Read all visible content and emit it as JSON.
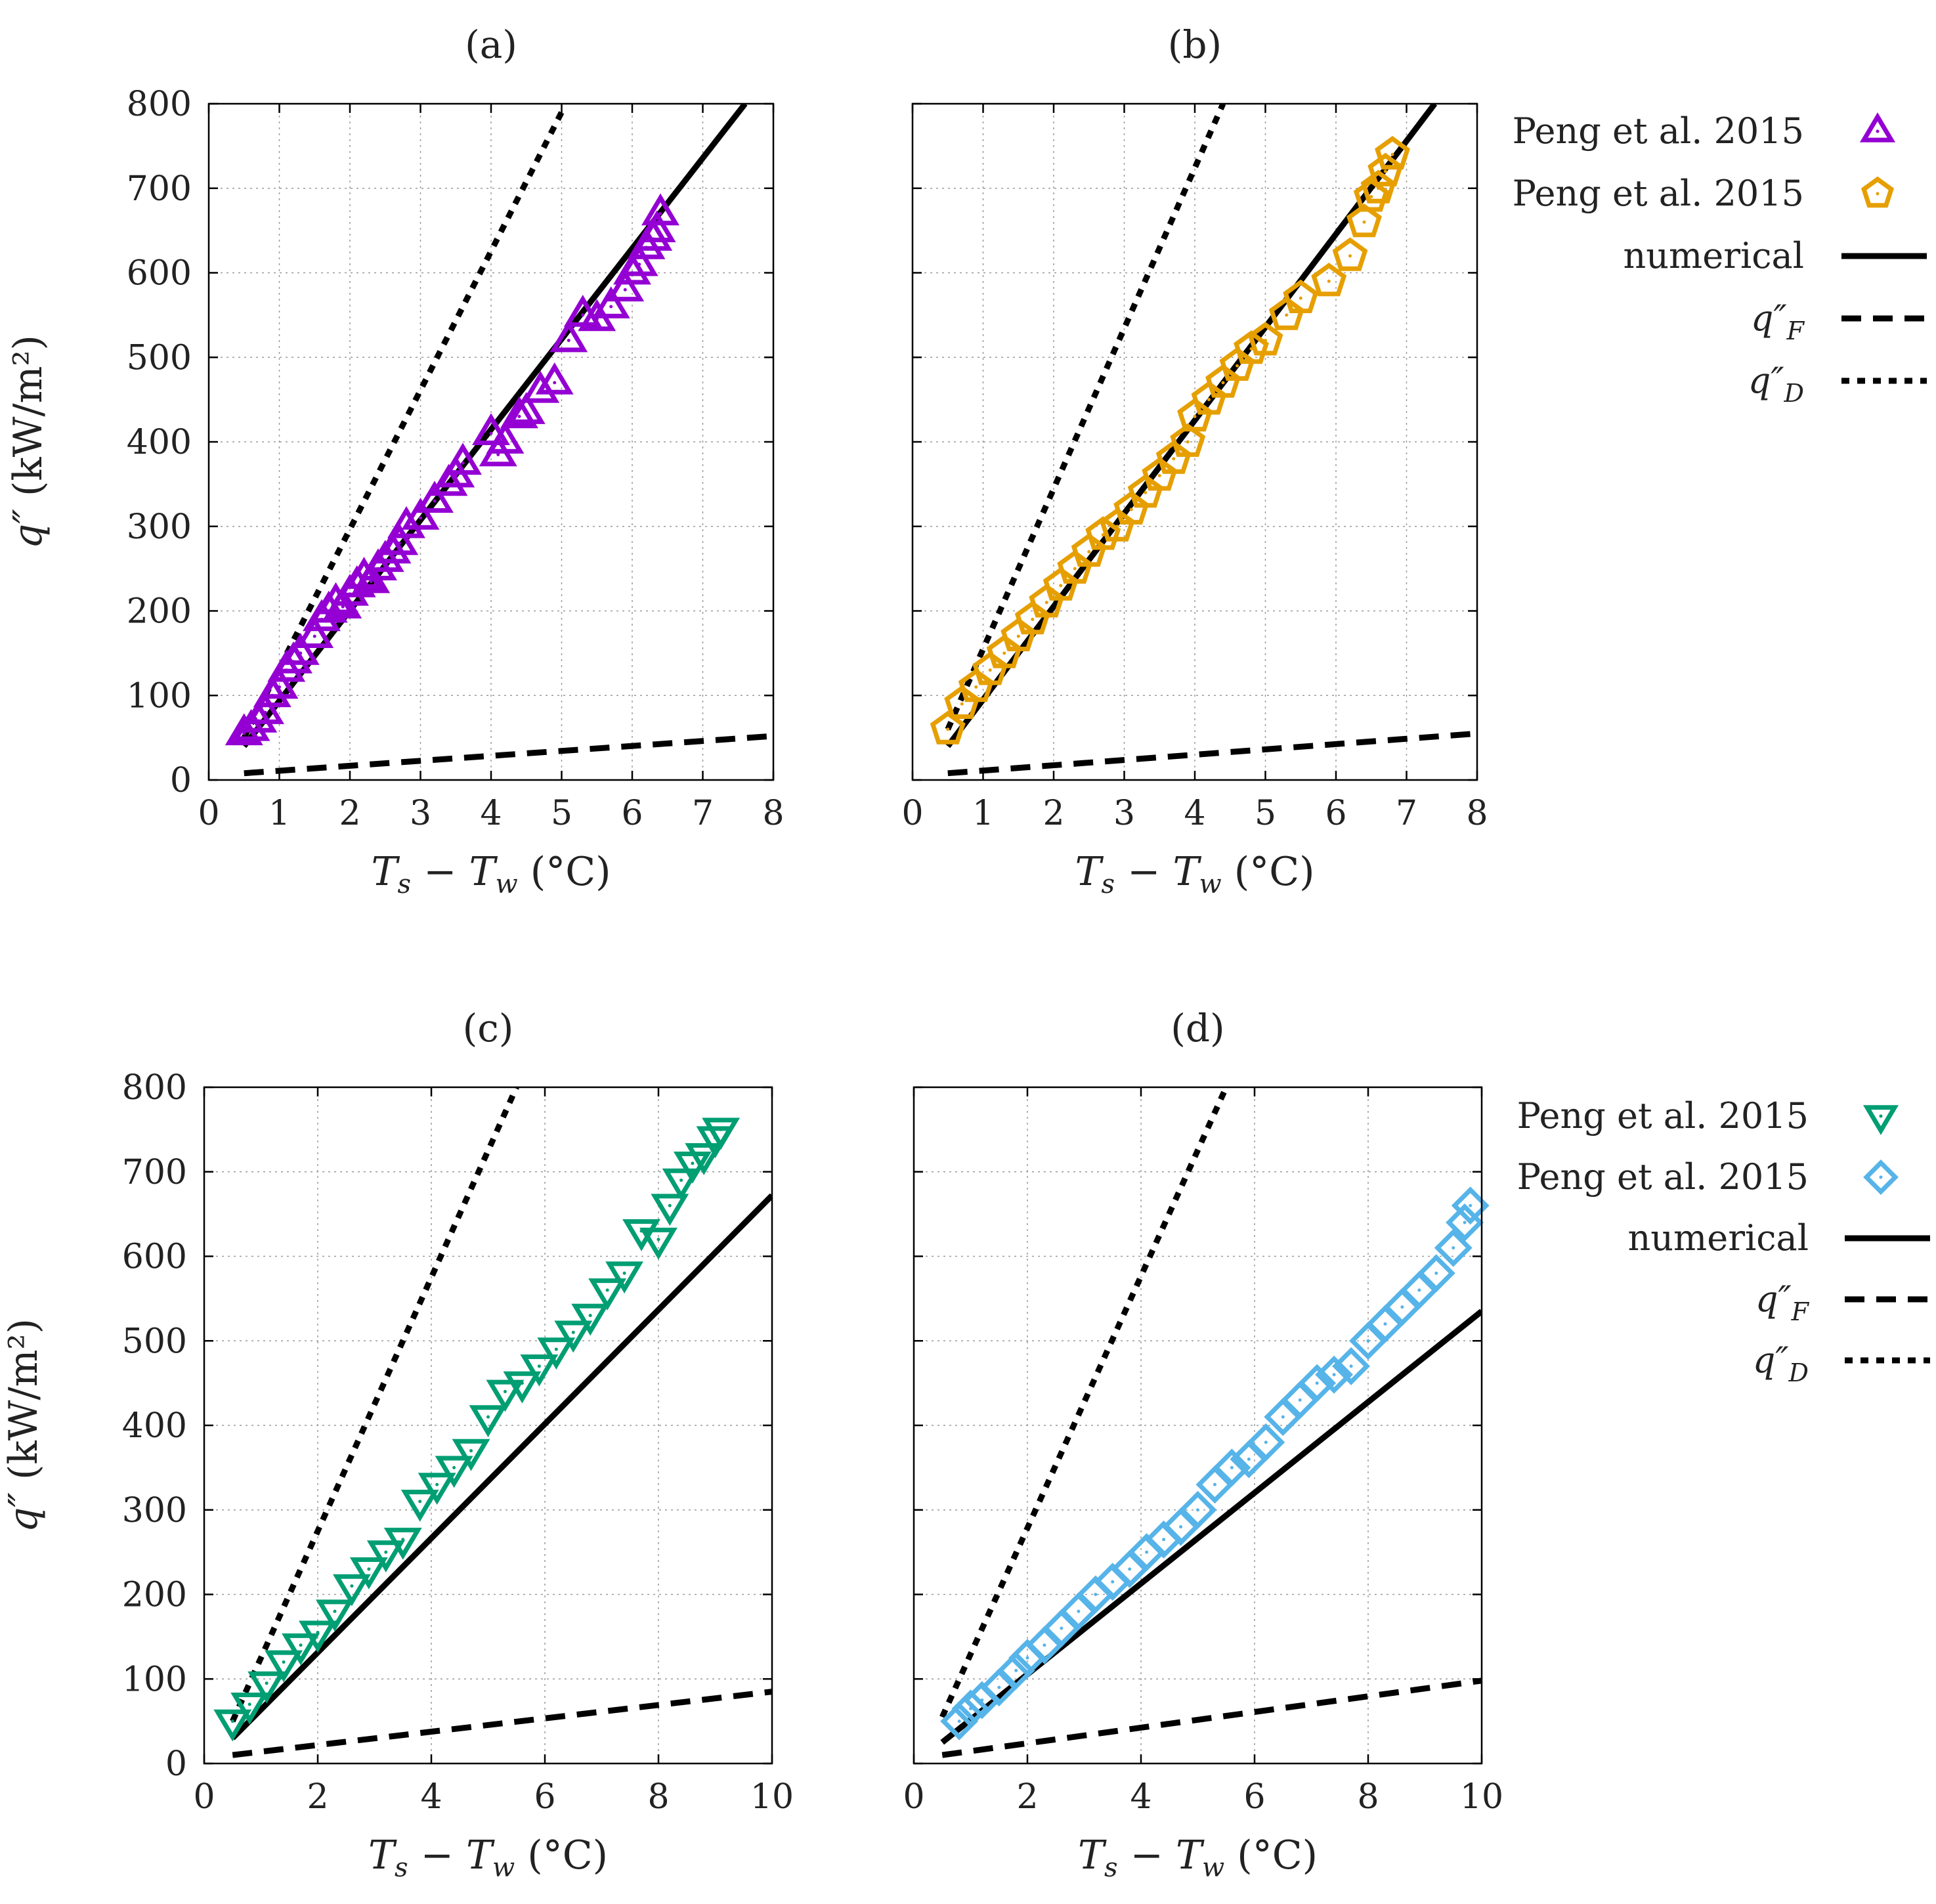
{
  "colors": {
    "a": "#9400d3",
    "b": "#e69f00",
    "c": "#009e73",
    "d": "#56b4e9",
    "line": "#000000",
    "grid": "#9a9a9a"
  },
  "legends": [
    {
      "entries": [
        {
          "label": "Peng et al. 2015",
          "kind": "marker",
          "marker": "triangle-up",
          "color": "#9400d3"
        },
        {
          "label": "Peng et al. 2015",
          "kind": "marker",
          "marker": "pentagon",
          "color": "#e69f00"
        },
        {
          "label": "numerical",
          "kind": "line",
          "style": "solid"
        },
        {
          "label": "q″",
          "sub": "F",
          "kind": "line",
          "style": "dashed"
        },
        {
          "label": "q″",
          "sub": "D",
          "kind": "line",
          "style": "dotted"
        }
      ]
    },
    {
      "entries": [
        {
          "label": "Peng et al. 2015",
          "kind": "marker",
          "marker": "triangle-down",
          "color": "#009e73"
        },
        {
          "label": "Peng et al. 2015",
          "kind": "marker",
          "marker": "diamond",
          "color": "#56b4e9"
        },
        {
          "label": "numerical",
          "kind": "line",
          "style": "solid"
        },
        {
          "label": "q″",
          "sub": "F",
          "kind": "line",
          "style": "dashed"
        },
        {
          "label": "q″",
          "sub": "D",
          "kind": "line",
          "style": "dotted"
        }
      ]
    }
  ],
  "chart_data": [
    {
      "id": "a",
      "type": "scatter",
      "title": "(a)",
      "xlabel": "T_s − T_w (°C)",
      "ylabel": "q″ (kW/m²)",
      "xlim": [
        0,
        8
      ],
      "ylim": [
        0,
        800
      ],
      "xticks": [
        0,
        1,
        2,
        3,
        4,
        5,
        6,
        7,
        8
      ],
      "yticks": [
        0,
        100,
        200,
        300,
        400,
        500,
        600,
        700,
        800
      ],
      "show_ytick_labels": true,
      "series": [
        {
          "name": "Peng et al. 2015",
          "kind": "scatter",
          "marker": "triangle-up",
          "color": "#9400d3",
          "x": [
            0.5,
            0.6,
            0.7,
            0.8,
            0.9,
            1.0,
            1.1,
            1.2,
            1.3,
            1.5,
            1.6,
            1.7,
            1.8,
            1.9,
            2.0,
            2.1,
            2.2,
            2.3,
            2.4,
            2.5,
            2.6,
            2.7,
            2.8,
            3.0,
            3.2,
            3.4,
            3.5,
            3.6,
            4.0,
            4.1,
            4.2,
            4.4,
            4.5,
            4.7,
            4.9,
            5.1,
            5.3,
            5.5,
            5.7,
            5.9,
            6.0,
            6.1,
            6.2,
            6.3,
            6.35,
            6.4
          ],
          "y": [
            55,
            60,
            70,
            80,
            100,
            110,
            130,
            140,
            150,
            170,
            190,
            200,
            210,
            205,
            220,
            230,
            240,
            235,
            250,
            260,
            270,
            280,
            300,
            310,
            330,
            350,
            360,
            375,
            410,
            385,
            400,
            430,
            435,
            460,
            470,
            520,
            550,
            545,
            560,
            580,
            600,
            610,
            630,
            640,
            650,
            670
          ]
        },
        {
          "name": "numerical",
          "kind": "line",
          "style": "solid",
          "x": [
            0.5,
            7.6
          ],
          "y": [
            40,
            800
          ]
        },
        {
          "name": "q″_F",
          "kind": "line",
          "style": "dashed",
          "x": [
            0.5,
            8.0
          ],
          "y": [
            8,
            52
          ]
        },
        {
          "name": "q″_D",
          "kind": "line",
          "style": "dotted",
          "x": [
            0.5,
            5.0
          ],
          "y": [
            50,
            790
          ]
        }
      ]
    },
    {
      "id": "b",
      "type": "scatter",
      "title": "(b)",
      "xlabel": "T_s − T_w (°C)",
      "ylabel": "",
      "xlim": [
        0,
        8
      ],
      "ylim": [
        0,
        800
      ],
      "xticks": [
        0,
        1,
        2,
        3,
        4,
        5,
        6,
        7,
        8
      ],
      "yticks": [
        0,
        100,
        200,
        300,
        400,
        500,
        600,
        700,
        800
      ],
      "show_ytick_labels": false,
      "series": [
        {
          "name": "Peng et al. 2015",
          "kind": "scatter",
          "marker": "pentagon",
          "color": "#e69f00",
          "x": [
            0.5,
            0.7,
            0.9,
            1.1,
            1.3,
            1.5,
            1.7,
            1.9,
            2.1,
            2.3,
            2.5,
            2.7,
            2.9,
            3.1,
            3.3,
            3.5,
            3.7,
            3.9,
            4.0,
            4.2,
            4.4,
            4.6,
            4.8,
            5.0,
            5.3,
            5.5,
            5.9,
            6.2,
            6.4,
            6.5,
            6.6,
            6.7,
            6.8
          ],
          "y": [
            60,
            90,
            110,
            130,
            150,
            170,
            190,
            210,
            230,
            250,
            270,
            290,
            300,
            320,
            340,
            360,
            380,
            400,
            430,
            450,
            470,
            490,
            510,
            520,
            550,
            570,
            590,
            620,
            660,
            690,
            700,
            720,
            740
          ]
        },
        {
          "name": "numerical",
          "kind": "line",
          "style": "solid",
          "x": [
            0.5,
            7.4
          ],
          "y": [
            40,
            800
          ]
        },
        {
          "name": "q″_F",
          "kind": "line",
          "style": "dashed",
          "x": [
            0.5,
            8.0
          ],
          "y": [
            8,
            55
          ]
        },
        {
          "name": "q″_D",
          "kind": "line",
          "style": "dotted",
          "x": [
            0.5,
            4.4
          ],
          "y": [
            60,
            800
          ]
        }
      ]
    },
    {
      "id": "c",
      "type": "scatter",
      "title": "(c)",
      "xlabel": "T_s − T_w (°C)",
      "ylabel": "q″ (kW/m²)",
      "xlim": [
        0,
        10
      ],
      "ylim": [
        0,
        800
      ],
      "xticks": [
        0,
        2,
        4,
        6,
        8,
        10
      ],
      "yticks": [
        0,
        100,
        200,
        300,
        400,
        500,
        600,
        700,
        800
      ],
      "show_ytick_labels": true,
      "series": [
        {
          "name": "Peng et al. 2015",
          "kind": "scatter",
          "marker": "triangle-down",
          "color": "#009e73",
          "x": [
            0.5,
            0.8,
            1.1,
            1.4,
            1.7,
            2.0,
            2.3,
            2.6,
            2.9,
            3.2,
            3.5,
            3.8,
            4.1,
            4.4,
            4.7,
            5.0,
            5.3,
            5.6,
            5.9,
            6.2,
            6.5,
            6.8,
            7.1,
            7.4,
            7.7,
            8.0,
            8.2,
            8.4,
            8.6,
            8.8,
            9.0,
            9.1
          ],
          "y": [
            50,
            70,
            95,
            120,
            140,
            155,
            180,
            210,
            230,
            250,
            265,
            310,
            330,
            350,
            370,
            410,
            440,
            450,
            470,
            490,
            510,
            530,
            560,
            580,
            630,
            620,
            660,
            690,
            710,
            720,
            740,
            750
          ]
        },
        {
          "name": "numerical",
          "kind": "line",
          "style": "solid",
          "x": [
            0.5,
            10.0
          ],
          "y": [
            30,
            672
          ]
        },
        {
          "name": "q″_F",
          "kind": "line",
          "style": "dashed",
          "x": [
            0.5,
            10.0
          ],
          "y": [
            10,
            85
          ]
        },
        {
          "name": "q″_D",
          "kind": "line",
          "style": "dotted",
          "x": [
            0.5,
            5.5
          ],
          "y": [
            50,
            800
          ]
        }
      ]
    },
    {
      "id": "d",
      "type": "scatter",
      "title": "(d)",
      "xlabel": "T_s − T_w (°C)",
      "ylabel": "",
      "xlim": [
        0,
        10
      ],
      "ylim": [
        0,
        800
      ],
      "xticks": [
        0,
        2,
        4,
        6,
        8,
        10
      ],
      "yticks": [
        0,
        100,
        200,
        300,
        400,
        500,
        600,
        700,
        800
      ],
      "show_ytick_labels": false,
      "series": [
        {
          "name": "Peng et al. 2015",
          "kind": "scatter",
          "marker": "diamond",
          "color": "#56b4e9",
          "x": [
            0.8,
            1.0,
            1.2,
            1.5,
            1.8,
            2.0,
            2.3,
            2.6,
            2.9,
            3.2,
            3.5,
            3.8,
            4.1,
            4.4,
            4.7,
            5.0,
            5.3,
            5.6,
            5.9,
            6.2,
            6.5,
            6.8,
            7.1,
            7.4,
            7.7,
            8.0,
            8.3,
            8.6,
            8.9,
            9.2,
            9.5,
            9.7,
            9.8
          ],
          "y": [
            50,
            65,
            75,
            90,
            110,
            125,
            140,
            160,
            180,
            200,
            215,
            230,
            250,
            265,
            280,
            300,
            330,
            350,
            360,
            380,
            410,
            430,
            450,
            460,
            470,
            500,
            520,
            540,
            560,
            580,
            610,
            640,
            660
          ]
        },
        {
          "name": "numerical",
          "kind": "line",
          "style": "solid",
          "x": [
            0.5,
            10.0
          ],
          "y": [
            25,
            535
          ]
        },
        {
          "name": "q″_F",
          "kind": "line",
          "style": "dashed",
          "x": [
            0.5,
            10.0
          ],
          "y": [
            10,
            98
          ]
        },
        {
          "name": "q″_D",
          "kind": "line",
          "style": "dotted",
          "x": [
            0.5,
            5.5
          ],
          "y": [
            55,
            800
          ]
        }
      ]
    }
  ]
}
